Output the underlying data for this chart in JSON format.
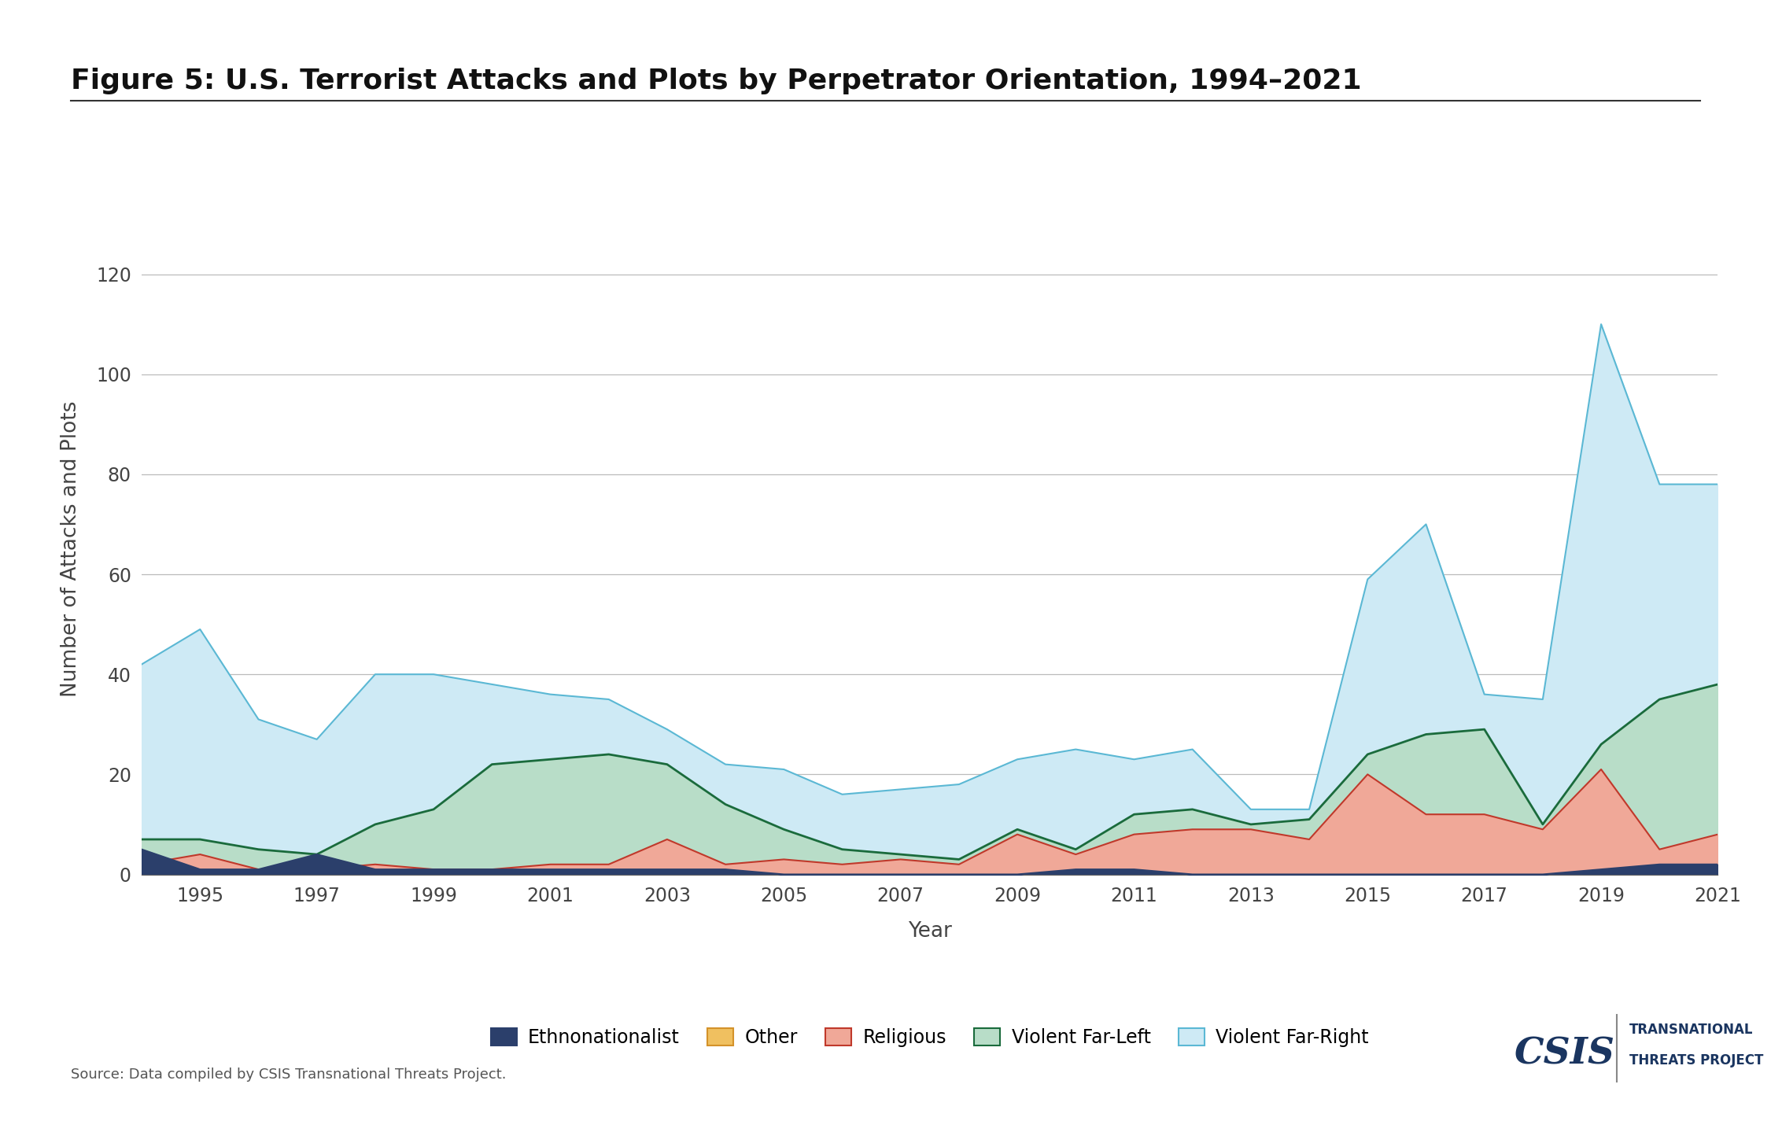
{
  "title": "Figure 5: U.S. Terrorist Attacks and Plots by Perpetrator Orientation, 1994–2021",
  "xlabel": "Year",
  "ylabel": "Number of Attacks and Plots",
  "source": "Source: Data compiled by CSIS Transnational Threats Project.",
  "years": [
    1994,
    1995,
    1996,
    1997,
    1998,
    1999,
    2000,
    2001,
    2002,
    2003,
    2004,
    2005,
    2006,
    2007,
    2008,
    2009,
    2010,
    2011,
    2012,
    2013,
    2014,
    2015,
    2016,
    2017,
    2018,
    2019,
    2020,
    2021
  ],
  "ethnonationalist": [
    5,
    1,
    1,
    4,
    1,
    1,
    1,
    1,
    1,
    1,
    1,
    0,
    0,
    0,
    0,
    0,
    1,
    1,
    0,
    0,
    0,
    0,
    0,
    0,
    0,
    1,
    2,
    2
  ],
  "other": [
    0,
    0,
    0,
    0,
    0,
    0,
    0,
    0,
    0,
    0,
    0,
    0,
    0,
    0,
    0,
    0,
    0,
    0,
    0,
    0,
    0,
    0,
    0,
    0,
    0,
    0,
    0,
    0
  ],
  "religious": [
    2,
    4,
    1,
    1,
    2,
    1,
    1,
    2,
    2,
    7,
    2,
    3,
    2,
    3,
    2,
    8,
    4,
    8,
    9,
    9,
    7,
    20,
    12,
    12,
    9,
    21,
    5,
    8
  ],
  "violent_far_left": [
    7,
    7,
    5,
    4,
    10,
    13,
    22,
    23,
    24,
    22,
    14,
    9,
    5,
    4,
    3,
    9,
    5,
    12,
    13,
    10,
    11,
    24,
    28,
    29,
    10,
    26,
    35,
    38
  ],
  "violent_far_right": [
    42,
    49,
    31,
    27,
    40,
    40,
    38,
    36,
    35,
    29,
    22,
    21,
    16,
    17,
    18,
    23,
    25,
    23,
    25,
    13,
    13,
    59,
    70,
    36,
    35,
    110,
    78,
    78
  ],
  "line_colors": {
    "ethnonationalist": "#2b3f6b",
    "other": "#d4922a",
    "religious": "#c0392b",
    "violent_far_left": "#1a6b3c",
    "violent_far_right": "#5bb8d4"
  },
  "fill_colors": {
    "ethnonationalist": "#2b3f6b",
    "other": "#f0c060",
    "religious": "#f0a898",
    "violent_far_left": "#b8ddc8",
    "violent_far_right": "#ceeaf5"
  },
  "ylim": [
    0,
    130
  ],
  "yticks": [
    0,
    20,
    40,
    60,
    80,
    100,
    120
  ],
  "xtick_years": [
    1995,
    1997,
    1999,
    2001,
    2003,
    2005,
    2007,
    2009,
    2011,
    2013,
    2015,
    2017,
    2019,
    2021
  ],
  "background_color": "#ffffff",
  "grid_color": "#bbbbbb"
}
